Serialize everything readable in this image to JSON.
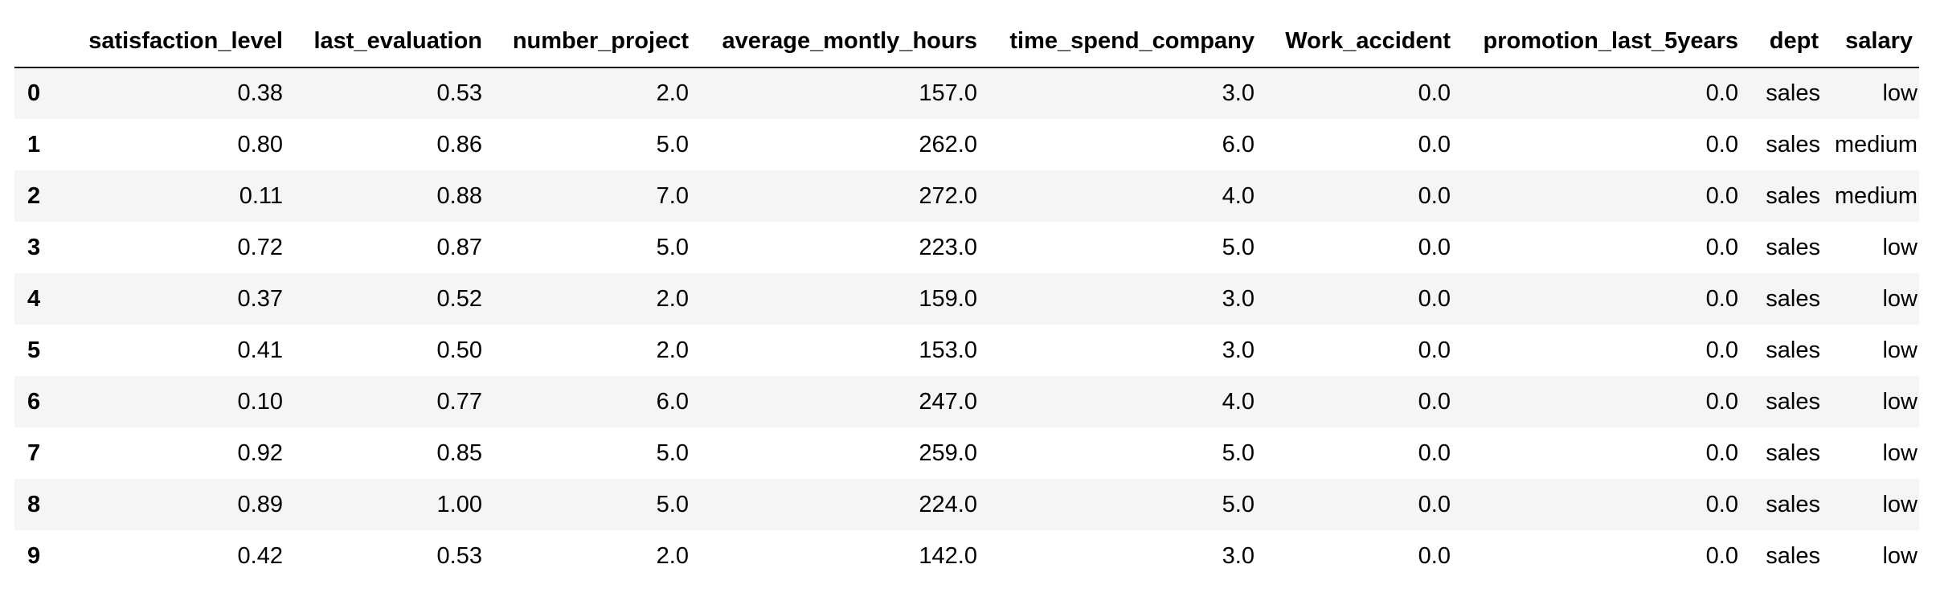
{
  "table": {
    "columns": [
      "",
      "satisfaction_level",
      "last_evaluation",
      "number_project",
      "average_montly_hours",
      "time_spend_company",
      "Work_accident",
      "promotion_last_5years",
      "dept",
      "salary"
    ],
    "rows": [
      {
        "index": "0",
        "satisfaction_level": "0.38",
        "last_evaluation": "0.53",
        "number_project": "2.0",
        "average_montly_hours": "157.0",
        "time_spend_company": "3.0",
        "work_accident": "0.0",
        "promotion_last_5years": "0.0",
        "dept": "sales",
        "salary": "low"
      },
      {
        "index": "1",
        "satisfaction_level": "0.80",
        "last_evaluation": "0.86",
        "number_project": "5.0",
        "average_montly_hours": "262.0",
        "time_spend_company": "6.0",
        "work_accident": "0.0",
        "promotion_last_5years": "0.0",
        "dept": "sales",
        "salary": "medium"
      },
      {
        "index": "2",
        "satisfaction_level": "0.11",
        "last_evaluation": "0.88",
        "number_project": "7.0",
        "average_montly_hours": "272.0",
        "time_spend_company": "4.0",
        "work_accident": "0.0",
        "promotion_last_5years": "0.0",
        "dept": "sales",
        "salary": "medium"
      },
      {
        "index": "3",
        "satisfaction_level": "0.72",
        "last_evaluation": "0.87",
        "number_project": "5.0",
        "average_montly_hours": "223.0",
        "time_spend_company": "5.0",
        "work_accident": "0.0",
        "promotion_last_5years": "0.0",
        "dept": "sales",
        "salary": "low"
      },
      {
        "index": "4",
        "satisfaction_level": "0.37",
        "last_evaluation": "0.52",
        "number_project": "2.0",
        "average_montly_hours": "159.0",
        "time_spend_company": "3.0",
        "work_accident": "0.0",
        "promotion_last_5years": "0.0",
        "dept": "sales",
        "salary": "low"
      },
      {
        "index": "5",
        "satisfaction_level": "0.41",
        "last_evaluation": "0.50",
        "number_project": "2.0",
        "average_montly_hours": "153.0",
        "time_spend_company": "3.0",
        "work_accident": "0.0",
        "promotion_last_5years": "0.0",
        "dept": "sales",
        "salary": "low"
      },
      {
        "index": "6",
        "satisfaction_level": "0.10",
        "last_evaluation": "0.77",
        "number_project": "6.0",
        "average_montly_hours": "247.0",
        "time_spend_company": "4.0",
        "work_accident": "0.0",
        "promotion_last_5years": "0.0",
        "dept": "sales",
        "salary": "low"
      },
      {
        "index": "7",
        "satisfaction_level": "0.92",
        "last_evaluation": "0.85",
        "number_project": "5.0",
        "average_montly_hours": "259.0",
        "time_spend_company": "5.0",
        "work_accident": "0.0",
        "promotion_last_5years": "0.0",
        "dept": "sales",
        "salary": "low"
      },
      {
        "index": "8",
        "satisfaction_level": "0.89",
        "last_evaluation": "1.00",
        "number_project": "5.0",
        "average_montly_hours": "224.0",
        "time_spend_company": "5.0",
        "work_accident": "0.0",
        "promotion_last_5years": "0.0",
        "dept": "sales",
        "salary": "low"
      },
      {
        "index": "9",
        "satisfaction_level": "0.42",
        "last_evaluation": "0.53",
        "number_project": "2.0",
        "average_montly_hours": "142.0",
        "time_spend_company": "3.0",
        "work_accident": "0.0",
        "promotion_last_5years": "0.0",
        "dept": "sales",
        "salary": "low"
      }
    ]
  },
  "colors": {
    "striped_row_background": "#f5f5f5",
    "plain_row_background": "#ffffff",
    "header_rule": "#000000",
    "text": "#000000"
  }
}
